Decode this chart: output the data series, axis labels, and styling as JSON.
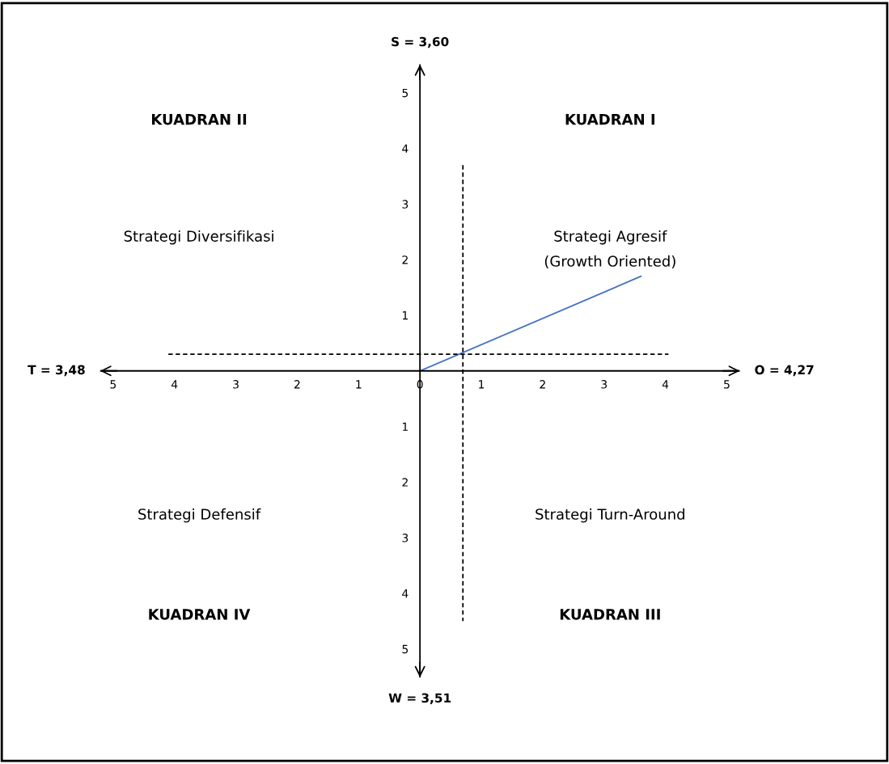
{
  "chart_data": {
    "type": "line",
    "xlim": [
      -6.8,
      7.6
    ],
    "ylim": [
      -7.0,
      6.6
    ],
    "xticks": [
      {
        "value": -5,
        "label": "5"
      },
      {
        "value": -4,
        "label": "4"
      },
      {
        "value": -3,
        "label": "3"
      },
      {
        "value": -2,
        "label": "2"
      },
      {
        "value": -1,
        "label": "1"
      },
      0,
      1,
      2,
      3,
      4,
      5
    ],
    "yticks": [
      {
        "value": -5,
        "label": "5"
      },
      {
        "value": -4,
        "label": "4"
      },
      {
        "value": -3,
        "label": "3"
      },
      {
        "value": -2,
        "label": "2"
      },
      {
        "value": -1,
        "label": "1"
      },
      1,
      2,
      3,
      4,
      5
    ],
    "grid": false,
    "series": [
      {
        "color": "#4472c4",
        "x": [
          0,
          3.6
        ],
        "values": [
          0,
          1.7
        ],
        "line_style": "solid"
      },
      {
        "color": "#000000",
        "x": [
          0.7,
          0.7
        ],
        "values": [
          3.7,
          -4.5
        ],
        "line_style": "dashed"
      },
      {
        "color": "#000000",
        "x": [
          -4.1,
          4.05
        ],
        "values": [
          0.3,
          0.3
        ],
        "line_style": "dashed"
      }
    ],
    "annotations": [
      "S = 3,60",
      "W = 3,51",
      "T = 3,48",
      "O = 4,27",
      "KUADRAN II",
      "KUADRAN I",
      "KUADRAN IV",
      "KUADRAN III",
      "Strategi Diversifikasi",
      "Strategi Agresif",
      "(Growth Oriented)",
      "Strategi Defensif",
      "Strategi Turn-Around"
    ]
  }
}
